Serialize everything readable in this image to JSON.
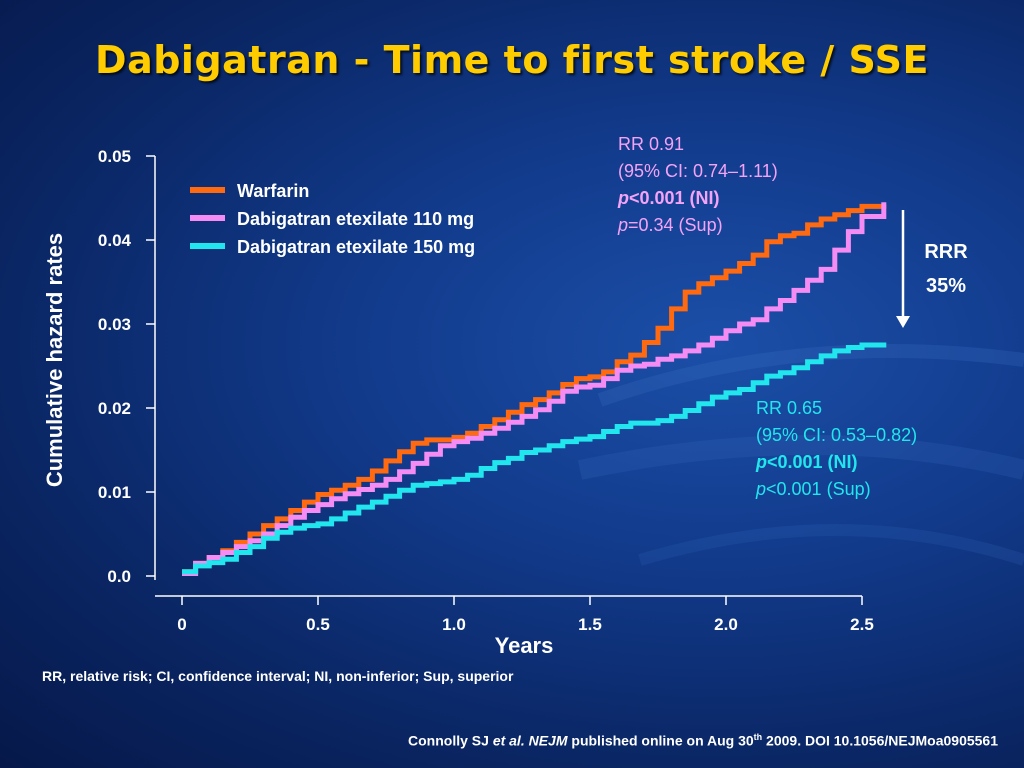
{
  "slide": {
    "title": "Dabigatran - Time to first stroke / SSE",
    "footnote": "RR, relative risk; CI, confidence interval; NI, non-inferior; Sup, superior",
    "citation": {
      "prefix": "Connolly SJ ",
      "etal": "et al. NEJM",
      "middle": " published online on Aug 30",
      "sup": "th",
      "suffix": " 2009. DOI 10.1056/NEJMoa0905561"
    }
  },
  "chart_data": {
    "type": "line",
    "xlabel": "Years",
    "ylabel": "Cumulative hazard rates",
    "xlim": [
      0,
      2.5
    ],
    "ylim": [
      0,
      0.05
    ],
    "x_ticks": [
      "0",
      "0.5",
      "1.0",
      "1.5",
      "2.0",
      "2.5"
    ],
    "y_ticks": [
      "0.0",
      "0.01",
      "0.02",
      "0.03",
      "0.04",
      "0.05"
    ],
    "legend_position": "top-left",
    "series": [
      {
        "name": "Warfarin",
        "color": "#ff6a10",
        "x": [
          0,
          0.05,
          0.1,
          0.15,
          0.2,
          0.25,
          0.3,
          0.35,
          0.4,
          0.45,
          0.5,
          0.55,
          0.6,
          0.65,
          0.7,
          0.75,
          0.8,
          0.85,
          0.9,
          0.95,
          1.0,
          1.05,
          1.1,
          1.15,
          1.2,
          1.25,
          1.3,
          1.35,
          1.4,
          1.45,
          1.5,
          1.55,
          1.6,
          1.65,
          1.7,
          1.75,
          1.8,
          1.85,
          1.9,
          1.95,
          2.0,
          2.05,
          2.1,
          2.15,
          2.2,
          2.25,
          2.3,
          2.35,
          2.4,
          2.45,
          2.5,
          2.58
        ],
        "values": [
          0.0005,
          0.0015,
          0.0022,
          0.003,
          0.004,
          0.005,
          0.006,
          0.0068,
          0.0078,
          0.0088,
          0.0097,
          0.0102,
          0.0108,
          0.0115,
          0.0125,
          0.0137,
          0.0148,
          0.0158,
          0.0162,
          0.0162,
          0.0165,
          0.017,
          0.0178,
          0.0186,
          0.0195,
          0.0204,
          0.021,
          0.0218,
          0.0228,
          0.0235,
          0.0237,
          0.0243,
          0.0255,
          0.0263,
          0.0278,
          0.0295,
          0.0318,
          0.0338,
          0.0348,
          0.0355,
          0.0363,
          0.0372,
          0.0382,
          0.0398,
          0.0405,
          0.0408,
          0.0418,
          0.0425,
          0.043,
          0.0435,
          0.044,
          0.0442
        ]
      },
      {
        "name": "Dabigatran etexilate 110 mg",
        "color": "#f48cf4",
        "x": [
          0,
          0.05,
          0.1,
          0.15,
          0.2,
          0.25,
          0.3,
          0.35,
          0.4,
          0.45,
          0.5,
          0.55,
          0.6,
          0.65,
          0.7,
          0.75,
          0.8,
          0.85,
          0.9,
          0.95,
          1.0,
          1.05,
          1.1,
          1.15,
          1.2,
          1.25,
          1.3,
          1.35,
          1.4,
          1.45,
          1.5,
          1.55,
          1.6,
          1.65,
          1.7,
          1.75,
          1.8,
          1.85,
          1.9,
          1.95,
          2.0,
          2.05,
          2.1,
          2.15,
          2.2,
          2.25,
          2.3,
          2.35,
          2.4,
          2.45,
          2.5,
          2.58
        ],
        "values": [
          0.0003,
          0.0015,
          0.0022,
          0.0028,
          0.0035,
          0.0042,
          0.005,
          0.006,
          0.007,
          0.0078,
          0.0085,
          0.0092,
          0.0098,
          0.0103,
          0.0108,
          0.0115,
          0.0124,
          0.0134,
          0.0145,
          0.0155,
          0.016,
          0.0164,
          0.017,
          0.0176,
          0.0183,
          0.019,
          0.0198,
          0.0208,
          0.022,
          0.0225,
          0.0227,
          0.0235,
          0.0245,
          0.025,
          0.0252,
          0.0258,
          0.0262,
          0.0268,
          0.0275,
          0.0283,
          0.0292,
          0.03,
          0.0305,
          0.0318,
          0.0328,
          0.034,
          0.0352,
          0.0365,
          0.0388,
          0.041,
          0.0428,
          0.0445
        ]
      },
      {
        "name": "Dabigatran etexilate 150 mg",
        "color": "#22e6ee",
        "x": [
          0,
          0.05,
          0.1,
          0.15,
          0.2,
          0.25,
          0.3,
          0.35,
          0.4,
          0.45,
          0.5,
          0.55,
          0.6,
          0.65,
          0.7,
          0.75,
          0.8,
          0.85,
          0.9,
          0.95,
          1.0,
          1.05,
          1.1,
          1.15,
          1.2,
          1.25,
          1.3,
          1.35,
          1.4,
          1.45,
          1.5,
          1.55,
          1.6,
          1.65,
          1.7,
          1.75,
          1.8,
          1.85,
          1.9,
          1.95,
          2.0,
          2.05,
          2.1,
          2.15,
          2.2,
          2.25,
          2.3,
          2.35,
          2.4,
          2.45,
          2.5,
          2.58
        ],
        "values": [
          0.0005,
          0.0012,
          0.0016,
          0.002,
          0.0028,
          0.0035,
          0.0045,
          0.0052,
          0.0057,
          0.006,
          0.0062,
          0.0068,
          0.0075,
          0.0082,
          0.0088,
          0.0095,
          0.0102,
          0.0108,
          0.011,
          0.0112,
          0.0115,
          0.012,
          0.0128,
          0.0135,
          0.014,
          0.0147,
          0.015,
          0.0155,
          0.016,
          0.0163,
          0.0166,
          0.0172,
          0.0178,
          0.0182,
          0.0182,
          0.0185,
          0.019,
          0.0197,
          0.0205,
          0.0213,
          0.0218,
          0.0222,
          0.023,
          0.0238,
          0.0242,
          0.0248,
          0.0255,
          0.0262,
          0.0268,
          0.0272,
          0.0275,
          0.0278
        ]
      }
    ],
    "annotations": {
      "rr110": {
        "line1": "RR 0.91",
        "line2": "(95% CI: 0.74–1.11)",
        "line3_p": "p",
        "line3": "<0.001 (NI)",
        "line4_p": "p",
        "line4": "=0.34 (Sup)"
      },
      "rr150": {
        "line1": "RR 0.65",
        "line2": "(95% CI: 0.53–0.82)",
        "line3_p": "p",
        "line3": "<0.001 (NI)",
        "line4_p": "p",
        "line4": "<0.001 (Sup)"
      },
      "rrr": {
        "line1": "RRR",
        "line2": "35%"
      }
    }
  }
}
